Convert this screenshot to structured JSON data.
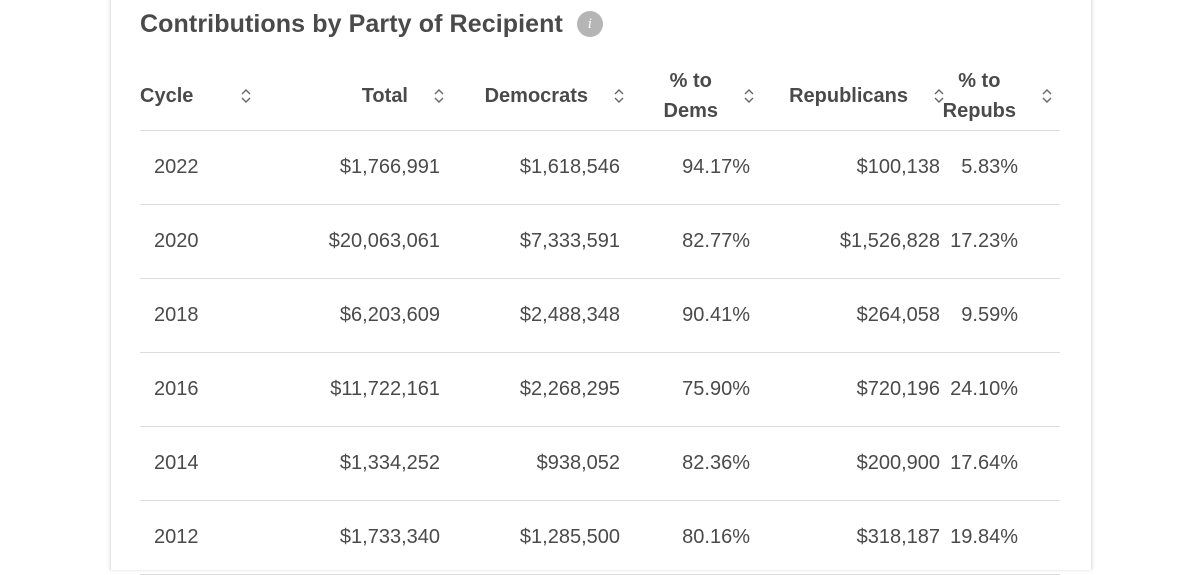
{
  "section": {
    "title": "Contributions by Party of Recipient",
    "info_icon": "i"
  },
  "table": {
    "headers": {
      "cycle": "Cycle",
      "total": "Total",
      "democrats": "Democrats",
      "pct_dems_line1": "% to",
      "pct_dems_line2": "Dems",
      "republicans": "Republicans",
      "pct_repubs_line1": "% to",
      "pct_repubs_line2": "Repubs"
    },
    "rows": [
      {
        "cycle": "2022",
        "total": "$1,766,991",
        "democrats": "$1,618,546",
        "pct_dems": "94.17%",
        "republicans": "$100,138",
        "pct_repubs": "5.83%"
      },
      {
        "cycle": "2020",
        "total": "$20,063,061",
        "democrats": "$7,333,591",
        "pct_dems": "82.77%",
        "republicans": "$1,526,828",
        "pct_repubs": "17.23%"
      },
      {
        "cycle": "2018",
        "total": "$6,203,609",
        "democrats": "$2,488,348",
        "pct_dems": "90.41%",
        "republicans": "$264,058",
        "pct_repubs": "9.59%"
      },
      {
        "cycle": "2016",
        "total": "$11,722,161",
        "democrats": "$2,268,295",
        "pct_dems": "75.90%",
        "republicans": "$720,196",
        "pct_repubs": "24.10%"
      },
      {
        "cycle": "2014",
        "total": "$1,334,252",
        "democrats": "$938,052",
        "pct_dems": "82.36%",
        "republicans": "$200,900",
        "pct_repubs": "17.64%"
      },
      {
        "cycle": "2012",
        "total": "$1,733,340",
        "democrats": "$1,285,500",
        "pct_dems": "80.16%",
        "republicans": "$318,187",
        "pct_repubs": "19.84%"
      }
    ]
  },
  "colors": {
    "text": "#4a4a4a",
    "divider": "#dddddd",
    "info_icon_bg": "#b5b5b5"
  }
}
